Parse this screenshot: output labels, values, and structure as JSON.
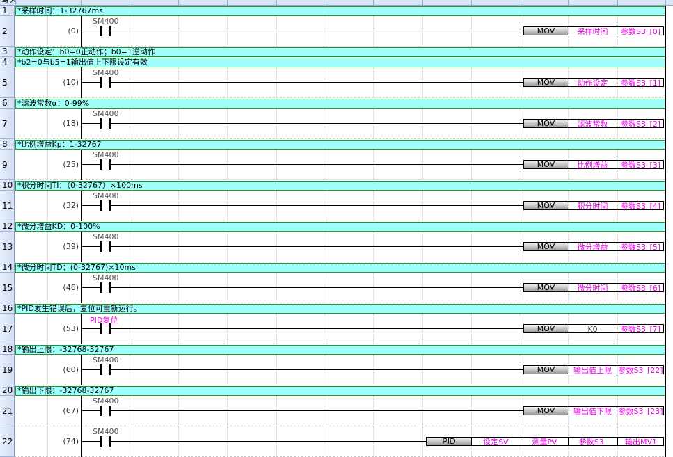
{
  "header": {
    "mode_label": "写入"
  },
  "colors": {
    "comment_bg": "#9ffffc",
    "comment_border": "#1f9a1f",
    "device_label": "#e800e8"
  },
  "rows": [
    {
      "n": "1",
      "type": "comment",
      "text": "*采样时间：1-32767ms"
    },
    {
      "n": "2",
      "type": "ladder",
      "step": "(0)",
      "contact": "SM400",
      "inst": "MOV",
      "ops": [
        "采样时间",
        "参数S3_[0]"
      ]
    },
    {
      "n": "3",
      "type": "comment",
      "text": "*动作设定：b0=0正动作；b0=1逆动作"
    },
    {
      "n": "4",
      "type": "comment",
      "text": "*b2=0与b5=1输出值上下限设定有效"
    },
    {
      "n": "5",
      "type": "ladder",
      "step": "(10)",
      "contact": "SM400",
      "inst": "MOV",
      "ops": [
        "动作设定",
        "参数S3_[1]"
      ]
    },
    {
      "n": "6",
      "type": "comment",
      "text": "*滤波常数α：0-99%"
    },
    {
      "n": "7",
      "type": "ladder",
      "step": "(18)",
      "contact": "SM400",
      "inst": "MOV",
      "ops": [
        "滤波常数",
        "参数S3_[2]"
      ]
    },
    {
      "n": "8",
      "type": "comment",
      "text": "*比例增益Kp：1-32767"
    },
    {
      "n": "9",
      "type": "ladder",
      "step": "(25)",
      "contact": "SM400",
      "inst": "MOV",
      "ops": [
        "比例增益",
        "参数S3_[3]"
      ]
    },
    {
      "n": "10",
      "type": "comment",
      "text": "*积分时间TI：（0-32767）×100ms"
    },
    {
      "n": "11",
      "type": "ladder",
      "step": "(32)",
      "contact": "SM400",
      "inst": "MOV",
      "ops": [
        "积分时间",
        "参数S3_[4]"
      ]
    },
    {
      "n": "12",
      "type": "comment",
      "text": "*微分增益KD：0-100%"
    },
    {
      "n": "13",
      "type": "ladder",
      "step": "(39)",
      "contact": "SM400",
      "inst": "MOV",
      "ops": [
        "微分增益",
        "参数S3_[5]"
      ]
    },
    {
      "n": "14",
      "type": "comment",
      "text": "*微分时间TD：(0-32767)×10ms"
    },
    {
      "n": "15",
      "type": "ladder",
      "step": "(46)",
      "contact": "SM400",
      "inst": "MOV",
      "ops": [
        "微分时间",
        "参数S3_[6]"
      ]
    },
    {
      "n": "16",
      "type": "comment",
      "text": "*PID发生错误后，复位可重新运行。"
    },
    {
      "n": "17",
      "type": "ladder",
      "step": "(53)",
      "contact": "PID复位",
      "contact_label": true,
      "inst": "MOV",
      "ops": [
        "K0",
        "参数S3_[7]"
      ],
      "plain_ops": [
        0
      ]
    },
    {
      "n": "18",
      "type": "comment",
      "text": "*输出上限：-32768-32767"
    },
    {
      "n": "19",
      "type": "ladder",
      "step": "(60)",
      "contact": "SM400",
      "inst": "MOV",
      "ops": [
        "输出值上限",
        "参数S3_[22]"
      ]
    },
    {
      "n": "20",
      "type": "comment",
      "text": "*输出下限：-32768-32767"
    },
    {
      "n": "21",
      "type": "ladder",
      "step": "(67)",
      "contact": "SM400",
      "inst": "MOV",
      "ops": [
        "输出值下限",
        "参数S3_[23]"
      ]
    },
    {
      "n": "22",
      "type": "ladder",
      "step": "(74)",
      "contact": "SM400",
      "inst": "PID",
      "ops": [
        "设定SV",
        "测量PV",
        "参数S3_",
        "输出MV1"
      ]
    }
  ]
}
